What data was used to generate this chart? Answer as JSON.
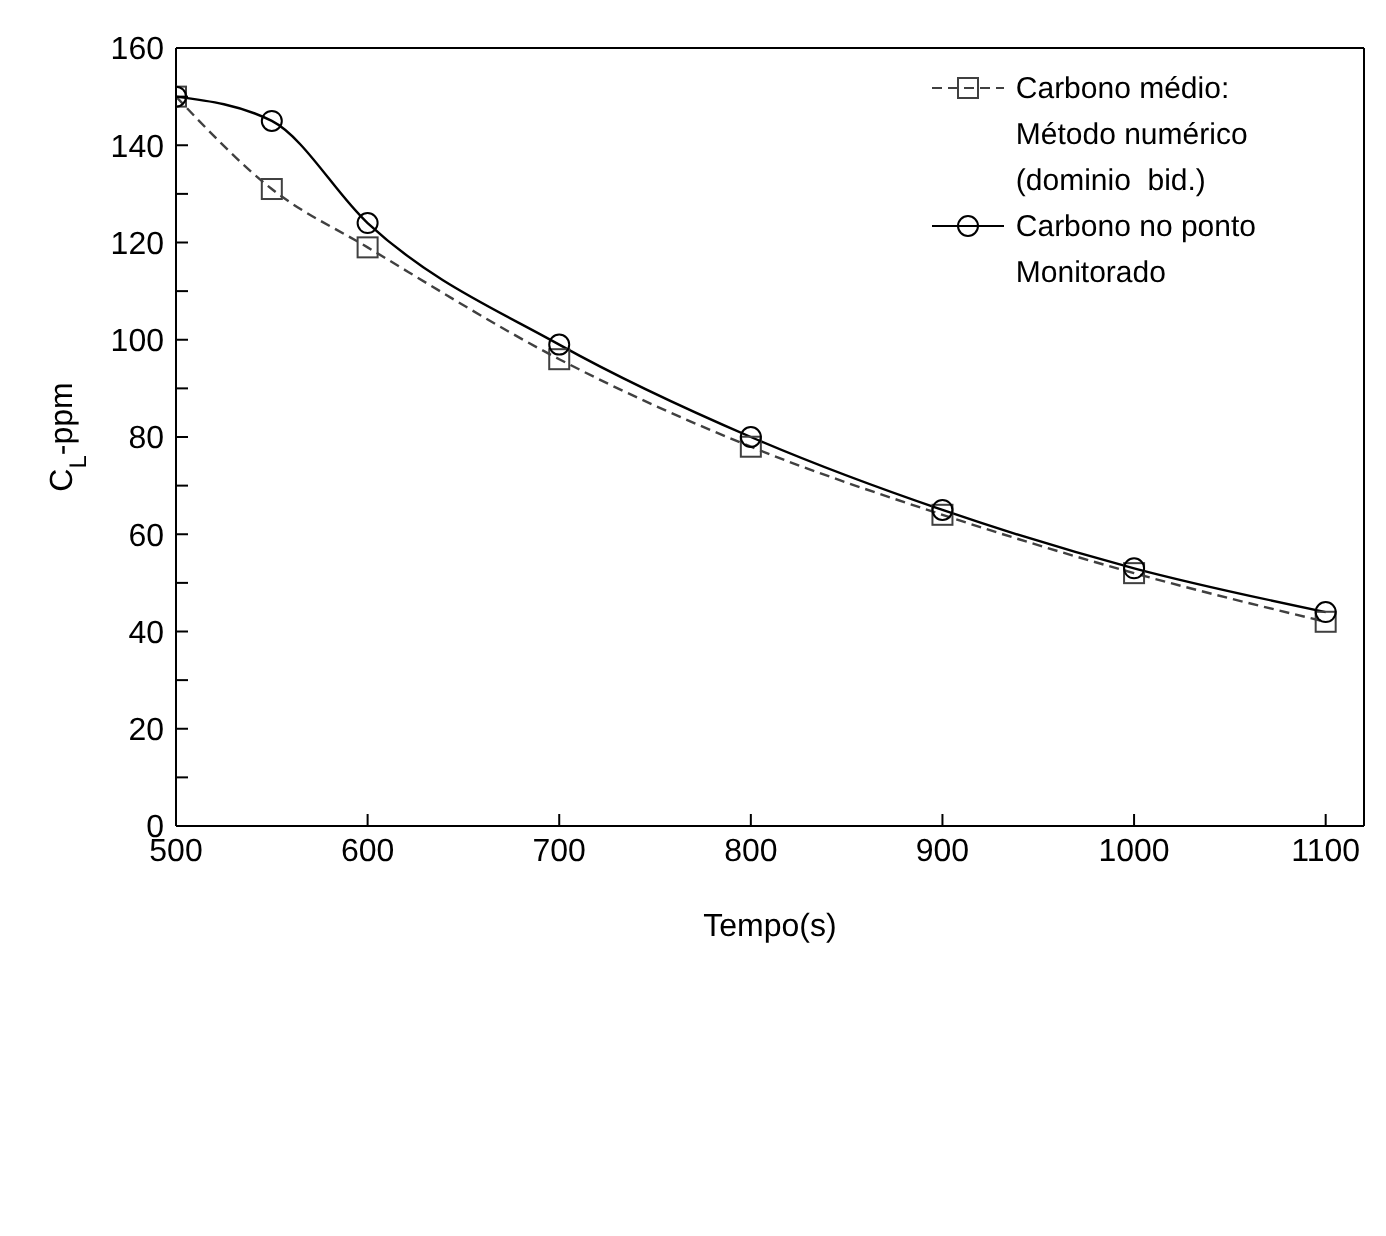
{
  "chart_data": {
    "type": "line",
    "xlabel": "Tempo(s)",
    "ylabel": "C$_{L}$-ppm",
    "x": [
      500,
      550,
      600,
      700,
      800,
      900,
      1000,
      1100
    ],
    "series": [
      {
        "name": "Carbono médio:\nMétodo numérico\n(dominio  bid.)",
        "color": "#404040",
        "line_style": "dashed",
        "marker": "square",
        "values": [
          150,
          131,
          119,
          96,
          78,
          64,
          52,
          42
        ]
      },
      {
        "name": "Carbono no ponto\nMonitorado",
        "color": "#000000",
        "line_style": "solid",
        "marker": "circle",
        "values": [
          150,
          145,
          124,
          99,
          80,
          65,
          53,
          44
        ]
      }
    ],
    "xlim": [
      500,
      1120
    ],
    "xticks": [
      500,
      600,
      700,
      800,
      900,
      1000,
      1100
    ],
    "ylim": [
      0,
      160
    ],
    "yticks": [
      0,
      {
        "value": 10,
        "label": null
      },
      20,
      {
        "value": 30,
        "label": null
      },
      40,
      {
        "value": 50,
        "label": null
      },
      60,
      {
        "value": 70,
        "label": null
      },
      80,
      {
        "value": 90,
        "label": null
      },
      100,
      {
        "value": 110,
        "label": null
      },
      120,
      {
        "value": 130,
        "label": null
      },
      140,
      {
        "value": 150,
        "label": null
      },
      160
    ],
    "grid": false,
    "legend": "top right"
  }
}
